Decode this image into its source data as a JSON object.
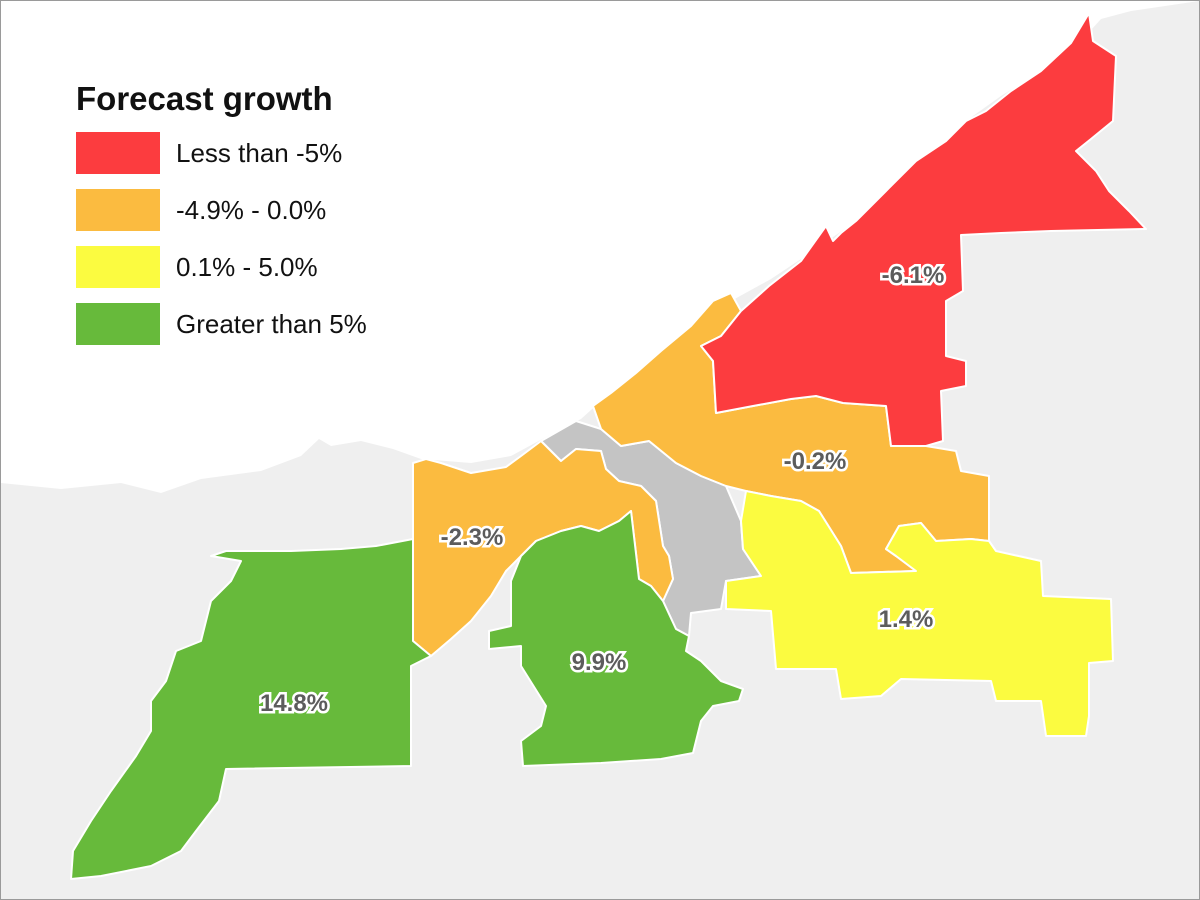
{
  "legend": {
    "title": "Forecast growth",
    "items": [
      {
        "label": "Less than -5%",
        "color": "#fc3c3f"
      },
      {
        "label": "-4.9% - 0.0%",
        "color": "#fbbb40"
      },
      {
        "label": "0.1% - 5.0%",
        "color": "#fbfb40"
      },
      {
        "label": "Greater than 5%",
        "color": "#67ba3b"
      }
    ]
  },
  "regions": [
    {
      "id": "east",
      "value": "-6.1%",
      "color": "#fc3c3f"
    },
    {
      "id": "central-east",
      "value": "-0.2%",
      "color": "#fbbb40"
    },
    {
      "id": "west-central",
      "value": "-2.3%",
      "color": "#fbbb40"
    },
    {
      "id": "southeast",
      "value": "1.4%",
      "color": "#fbfb40"
    },
    {
      "id": "south-central",
      "value": "9.9%",
      "color": "#67ba3b"
    },
    {
      "id": "southwest",
      "value": "14.8%",
      "color": "#67ba3b"
    }
  ],
  "colors": {
    "land": "#efefef",
    "water": "#ffffff",
    "no_data": "#c4c4c4"
  }
}
